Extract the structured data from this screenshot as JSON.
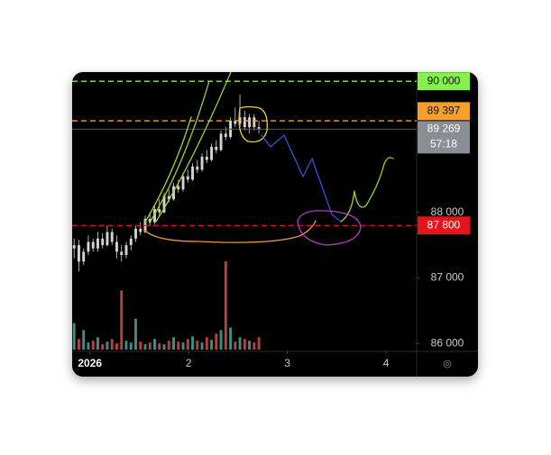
{
  "chart_data": {
    "type": "candlestick",
    "x": [
      0.84,
      0.888,
      0.936,
      0.984,
      1.032,
      1.08,
      1.128,
      1.176,
      1.224,
      1.272,
      1.32,
      1.368,
      1.416,
      1.464,
      1.512,
      1.56,
      1.608,
      1.656,
      1.704,
      1.752,
      1.8,
      1.848,
      1.896,
      1.944,
      1.992,
      2.04,
      2.088,
      2.136,
      2.184,
      2.232,
      2.28,
      2.328,
      2.376,
      2.424,
      2.472,
      2.52,
      2.568,
      2.616,
      2.664,
      2.712
    ],
    "open": [
      87450,
      87500,
      87250,
      87400,
      87550,
      87450,
      87600,
      87500,
      87700,
      87550,
      87400,
      87350,
      87500,
      87600,
      87750,
      87700,
      87900,
      87850,
      88050,
      88000,
      88250,
      88200,
      88400,
      88350,
      88550,
      88500,
      88700,
      88650,
      88850,
      88800,
      89000,
      88950,
      89200,
      89150,
      89400,
      89350,
      89450,
      89300,
      89450,
      89300
    ],
    "high": [
      87600,
      87580,
      87450,
      87650,
      87600,
      87700,
      87680,
      87800,
      87750,
      87650,
      87500,
      87550,
      87650,
      87800,
      87850,
      87950,
      88000,
      88100,
      88200,
      88300,
      88350,
      88450,
      88500,
      88600,
      88650,
      88750,
      88800,
      88900,
      88950,
      89050,
      89100,
      89250,
      89300,
      89450,
      89600,
      89800,
      89550,
      89500,
      89500,
      89400
    ],
    "low": [
      87300,
      87100,
      87200,
      87350,
      87400,
      87400,
      87450,
      87480,
      87500,
      87300,
      87250,
      87300,
      87420,
      87550,
      87650,
      87680,
      87800,
      87820,
      87950,
      87980,
      88150,
      88180,
      88300,
      88320,
      88450,
      88480,
      88600,
      88620,
      88750,
      88780,
      88900,
      88930,
      89100,
      89120,
      89300,
      89300,
      89250,
      89200,
      89250,
      89200
    ],
    "close": [
      87500,
      87250,
      87400,
      87550,
      87450,
      87600,
      87500,
      87700,
      87550,
      87400,
      87350,
      87500,
      87600,
      87750,
      87700,
      87900,
      87850,
      88050,
      88000,
      88250,
      88200,
      88400,
      88350,
      88550,
      88500,
      88700,
      88650,
      88850,
      88800,
      89000,
      88950,
      89200,
      89150,
      89400,
      89350,
      89450,
      89300,
      89450,
      89300,
      89269
    ],
    "volume": [
      30,
      12,
      22,
      8,
      10,
      14,
      6,
      9,
      12,
      7,
      67,
      10,
      8,
      35,
      9,
      6,
      8,
      12,
      7,
      6,
      10,
      14,
      9,
      8,
      12,
      15,
      10,
      8,
      14,
      11,
      18,
      22,
      100,
      25,
      9,
      14,
      12,
      10,
      8,
      14
    ],
    "candle_color": "#d4d4d4",
    "volume_up_color": "#3d8f86",
    "volume_down_color": "#b5443f",
    "xlim": [
      0.82,
      4.31
    ],
    "xticks": [
      {
        "value": 1,
        "label": "2026"
      },
      2,
      3,
      4
    ],
    "ylim": [
      85880,
      90140
    ],
    "yticks": [
      {
        "value": 88000,
        "label": "88 000"
      },
      {
        "value": 87000,
        "label": "87 000"
      },
      {
        "value": 86000,
        "label": "86 000"
      }
    ],
    "levels": [
      {
        "value": 90000,
        "label": "90 000",
        "color": "#86f04a"
      },
      {
        "value": 89397,
        "label": "89 397",
        "color": "#f5a02a"
      },
      {
        "value": 87800,
        "label": "87 800",
        "color": "#e3151b"
      }
    ],
    "current_price": {
      "value": 89269,
      "label": "89 269",
      "countdown": "57:18",
      "color": "#8a8d94"
    }
  }
}
